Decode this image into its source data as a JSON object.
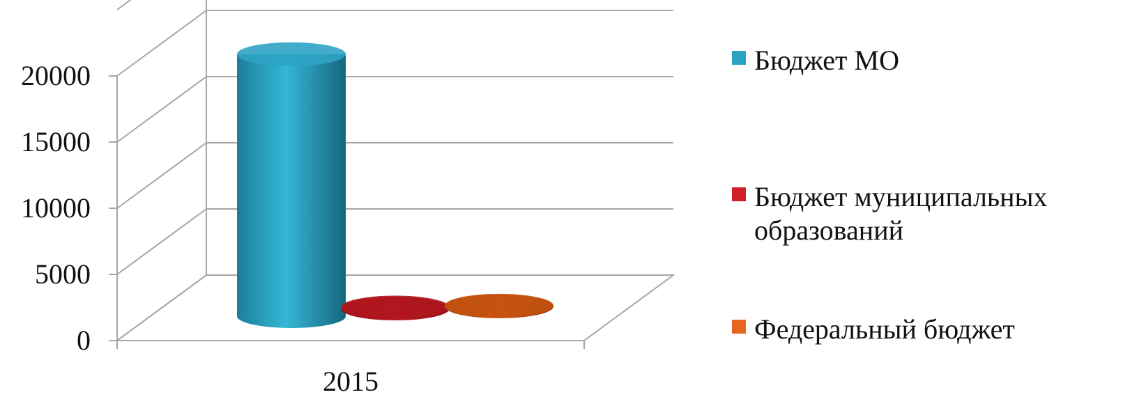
{
  "chart_data": {
    "type": "bar",
    "style": "3d-cylinder",
    "title": "",
    "xlabel": "",
    "ylabel": "",
    "categories": [
      "2015"
    ],
    "series": [
      {
        "name": "Бюджет МО",
        "values": [
          19800
        ],
        "color": "#2DA3C4"
      },
      {
        "name": "Бюджет муниципальных образований",
        "values": [
          80
        ],
        "color": "#B0161E"
      },
      {
        "name": "Федеральный бюджет",
        "values": [
          60
        ],
        "color": "#C4520F"
      }
    ],
    "ylim": [
      0,
      20000
    ],
    "y_ticks": [
      0,
      5000,
      10000,
      15000,
      20000
    ],
    "grid": true,
    "legend_position": "right"
  },
  "legend": {
    "items": [
      {
        "lines": [
          "Бюджет МО"
        ],
        "color": "#2DA3C4"
      },
      {
        "lines": [
          "Бюджет муниципальных",
          "образований"
        ],
        "color": "#D11F2A"
      },
      {
        "lines": [
          "Федеральный бюджет"
        ],
        "color": "#E8651F"
      }
    ]
  }
}
